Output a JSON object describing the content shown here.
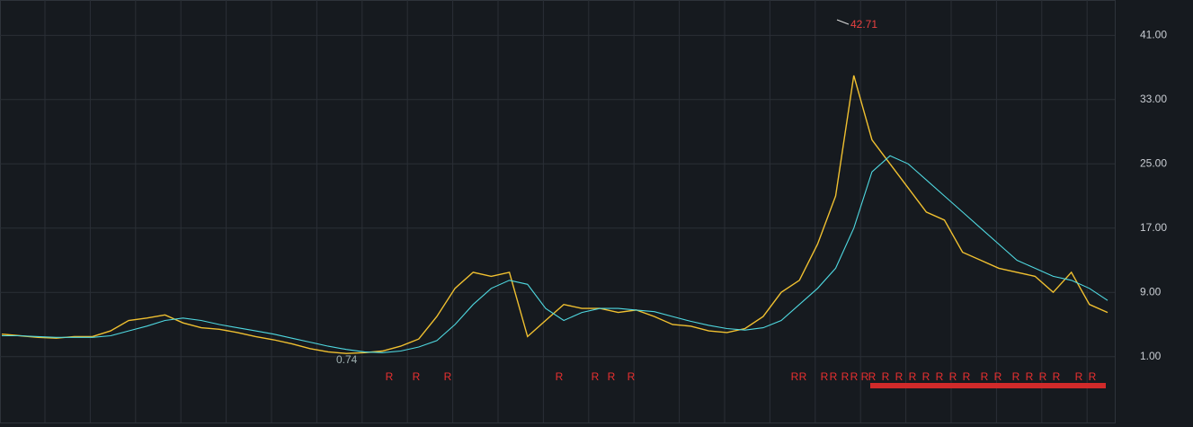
{
  "chart_data": {
    "type": "line",
    "ylim": [
      -7.2,
      45.4
    ],
    "yticks": [
      {
        "value": 1,
        "label": "1.00"
      },
      {
        "value": 9,
        "label": "9.00"
      },
      {
        "value": 17,
        "label": "17.00"
      },
      {
        "value": 25,
        "label": "25.00"
      },
      {
        "value": 33,
        "label": "33.00"
      },
      {
        "value": 41,
        "label": "41.00"
      }
    ],
    "grid": true,
    "series": [
      {
        "color": "#f0c030",
        "values": [
          3.8,
          3.6,
          3.4,
          3.3,
          3.5,
          3.5,
          4.2,
          5.5,
          5.8,
          6.2,
          5.2,
          4.6,
          4.4,
          4.0,
          3.5,
          3.1,
          2.6,
          2.0,
          1.6,
          1.4,
          1.5,
          1.7,
          2.3,
          3.2,
          6.0,
          9.5,
          11.5,
          11.0,
          11.5,
          3.5,
          5.5,
          7.5,
          7.0,
          7.0,
          6.5,
          6.8,
          6.0,
          5.0,
          4.8,
          4.2,
          4.0,
          4.5,
          6.0,
          9.0,
          10.5,
          15.0,
          21.0,
          36.0,
          28.0,
          25.0,
          22.0,
          19.0,
          18.0,
          14.0,
          13.0,
          12.0,
          11.5,
          11.0,
          9.0,
          11.5,
          7.5,
          6.5
        ]
      },
      {
        "color": "#4fd8e0",
        "values": [
          3.6,
          3.6,
          3.5,
          3.4,
          3.4,
          3.4,
          3.6,
          4.2,
          4.8,
          5.5,
          5.8,
          5.5,
          5.0,
          4.6,
          4.2,
          3.8,
          3.3,
          2.8,
          2.3,
          1.9,
          1.6,
          1.5,
          1.7,
          2.2,
          3.0,
          5.0,
          7.5,
          9.5,
          10.5,
          10.0,
          7.0,
          5.5,
          6.5,
          7.0,
          7.0,
          6.8,
          6.6,
          6.0,
          5.4,
          4.9,
          4.5,
          4.3,
          4.6,
          5.5,
          7.5,
          9.5,
          12.0,
          17.0,
          24.0,
          26.0,
          25.0,
          23.0,
          21.0,
          19.0,
          17.0,
          15.0,
          13.0,
          12.0,
          11.0,
          10.5,
          9.5,
          8.0
        ]
      }
    ],
    "annotations": [
      "42.71",
      "0.74"
    ],
    "marker_text": "R"
  }
}
